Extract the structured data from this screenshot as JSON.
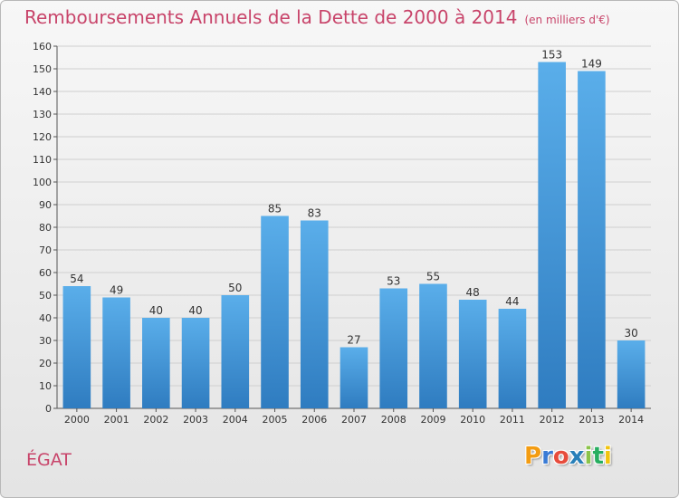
{
  "header": {
    "title": "Remboursements Annuels de la Dette de 2000 à 2014",
    "unit": "(en milliers d'€)"
  },
  "footer": {
    "commune": "ÉGAT",
    "logo_letters": [
      "P",
      "r",
      "o",
      "x",
      "i",
      "t",
      "i"
    ],
    "logo_colors": [
      "#f39c12",
      "#3a7bd5",
      "#e74c3c",
      "#2980b9",
      "#8bc34a",
      "#27ae60",
      "#f1c40f"
    ]
  },
  "chart_data": {
    "type": "bar",
    "categories": [
      "2000",
      "2001",
      "2002",
      "2003",
      "2004",
      "2005",
      "2006",
      "2007",
      "2008",
      "2009",
      "2010",
      "2011",
      "2012",
      "2013",
      "2014"
    ],
    "values": [
      54,
      49,
      40,
      40,
      50,
      85,
      83,
      27,
      53,
      55,
      48,
      44,
      153,
      149,
      30
    ],
    "ylim": [
      0,
      160
    ],
    "yticks": [
      0,
      10,
      20,
      30,
      40,
      50,
      60,
      70,
      80,
      90,
      100,
      110,
      120,
      130,
      140,
      150,
      160
    ],
    "grid": true,
    "bar_color_top": "#5aaeea",
    "bar_color_bottom": "#2f7cc0"
  }
}
